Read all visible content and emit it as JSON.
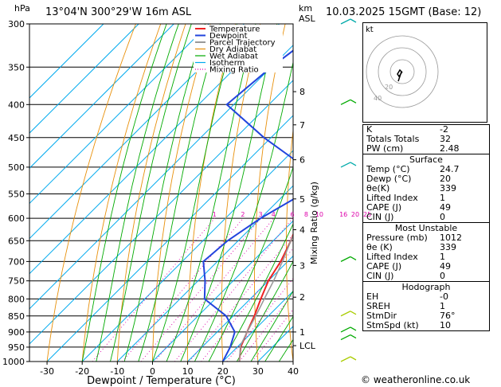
{
  "header": {
    "location": "13°04'N  300°29'W  16m  ASL",
    "datetime": "10.03.2025  15GMT  (Base: 12)",
    "hpa_label": "hPa",
    "km_label": "km",
    "asl_label": "ASL"
  },
  "chart_data": {
    "type": "line",
    "xlabel": "Dewpoint / Temperature (°C)",
    "ylabel_right": "Mixing Ratio (g/kg)",
    "xticks": [
      -30,
      -20,
      -10,
      0,
      10,
      20,
      30,
      40
    ],
    "xlim": [
      -35,
      40
    ],
    "pressure_levels": [
      300,
      350,
      400,
      450,
      500,
      550,
      600,
      650,
      700,
      750,
      800,
      850,
      900,
      950,
      1000
    ],
    "ylim": [
      1000,
      300
    ],
    "km_ticks": [
      {
        "label": "8",
        "p": 382
      },
      {
        "label": "7",
        "p": 430
      },
      {
        "label": "6",
        "p": 487
      },
      {
        "label": "5",
        "p": 560
      },
      {
        "label": "4",
        "p": 625
      },
      {
        "label": "3",
        "p": 710
      },
      {
        "label": "2",
        "p": 795
      },
      {
        "label": "1",
        "p": 900
      },
      {
        "label": "LCL",
        "p": 945
      }
    ],
    "mixing_ratio_labels": [
      "1",
      "2",
      "3",
      "4",
      "6",
      "8",
      "10",
      "16",
      "20",
      "25"
    ],
    "mixing_ratio_values": [
      1,
      2,
      3,
      4,
      6,
      8,
      10,
      16,
      20,
      25
    ],
    "legend": [
      "Temperature",
      "Dewpoint",
      "Parcel Trajectory",
      "Dry Adiabat",
      "Wet Adiabat",
      "Isotherm",
      "Mixing Ratio"
    ],
    "series": [
      {
        "name": "Temperature",
        "color": "#ee2222",
        "points": [
          [
            1000,
            24.7
          ],
          [
            950,
            21
          ],
          [
            900,
            18.5
          ],
          [
            850,
            16
          ],
          [
            800,
            13
          ],
          [
            750,
            10
          ],
          [
            700,
            8
          ],
          [
            650,
            5
          ],
          [
            600,
            1
          ],
          [
            550,
            -4
          ],
          [
            500,
            -9
          ],
          [
            450,
            -14
          ],
          [
            400,
            -20
          ],
          [
            350,
            -28
          ],
          [
            300,
            -37
          ]
        ]
      },
      {
        "name": "Dewpoint",
        "color": "#2244dd",
        "points": [
          [
            1000,
            20
          ],
          [
            950,
            18
          ],
          [
            900,
            15
          ],
          [
            850,
            8
          ],
          [
            800,
            -3
          ],
          [
            750,
            -8
          ],
          [
            700,
            -14
          ],
          [
            650,
            -13
          ],
          [
            600,
            -10
          ],
          [
            550,
            -5
          ],
          [
            500,
            -12
          ],
          [
            450,
            -32
          ],
          [
            400,
            -52
          ],
          [
            350,
            -50
          ],
          [
            300,
            -46
          ]
        ]
      },
      {
        "name": "Parcel Trajectory",
        "color": "#999999",
        "points": [
          [
            1000,
            24.7
          ],
          [
            945,
            20.5
          ],
          [
            900,
            18.5
          ],
          [
            850,
            16.4
          ],
          [
            800,
            14
          ],
          [
            750,
            11.5
          ],
          [
            700,
            8.5
          ],
          [
            650,
            5
          ],
          [
            600,
            1.5
          ],
          [
            550,
            -2.5
          ],
          [
            500,
            -7
          ],
          [
            450,
            -12.5
          ],
          [
            400,
            -18.5
          ],
          [
            350,
            -26
          ],
          [
            300,
            -35
          ]
        ]
      }
    ],
    "colors": {
      "dry_adiabat": "#e8900a",
      "wet_adiabat": "#00aa00",
      "isotherm": "#00aaee",
      "mixing_ratio": "#dd00aa",
      "temperature": "#ee2222",
      "dewpoint": "#2244dd",
      "parcel": "#999999"
    }
  },
  "wind_barbs": [
    {
      "p": 300,
      "color": "#00aaaa"
    },
    {
      "p": 400,
      "color": "#00aa00"
    },
    {
      "p": 500,
      "color": "#00aaaa"
    },
    {
      "p": 700,
      "color": "#00aa00"
    },
    {
      "p": 850,
      "color": "#aacc00"
    },
    {
      "p": 900,
      "color": "#00aa00"
    },
    {
      "p": 925,
      "color": "#00aa00"
    },
    {
      "p": 1000,
      "color": "#aacc00"
    }
  ],
  "hodograph": {
    "label": "kt",
    "ring_labels": [
      "20",
      "40"
    ],
    "trace": [
      [
        0,
        0
      ],
      [
        -2,
        -3
      ],
      [
        -4,
        -6
      ],
      [
        -6,
        -3
      ],
      [
        -3,
        2
      ],
      [
        -1,
        0
      ],
      [
        -5,
        -12
      ]
    ]
  },
  "indices": [
    {
      "label": "K",
      "value": "-2"
    },
    {
      "label": "Totals Totals",
      "value": "32"
    },
    {
      "label": "PW (cm)",
      "value": "2.48"
    }
  ],
  "surface": {
    "title": "Surface",
    "rows": [
      {
        "label": "Temp (°C)",
        "value": "24.7"
      },
      {
        "label": "Dewp (°C)",
        "value": "20"
      },
      {
        "label": "θe(K)",
        "value": "339"
      },
      {
        "label": "Lifted Index",
        "value": "1"
      },
      {
        "label": "CAPE (J)",
        "value": "49"
      },
      {
        "label": "CIN (J)",
        "value": "0"
      }
    ]
  },
  "most_unstable": {
    "title": "Most Unstable",
    "rows": [
      {
        "label": "Pressure (mb)",
        "value": "1012"
      },
      {
        "label": "θe (K)",
        "value": "339"
      },
      {
        "label": "Lifted Index",
        "value": "1"
      },
      {
        "label": "CAPE (J)",
        "value": "49"
      },
      {
        "label": "CIN (J)",
        "value": "0"
      }
    ]
  },
  "hodograph_table": {
    "title": "Hodograph",
    "rows": [
      {
        "label": "EH",
        "value": "-0"
      },
      {
        "label": "SREH",
        "value": "1"
      },
      {
        "label": "StmDir",
        "value": "76°"
      },
      {
        "label": "StmSpd (kt)",
        "value": "10"
      }
    ]
  },
  "footer": {
    "copyright": "© weatheronline.co.uk"
  }
}
